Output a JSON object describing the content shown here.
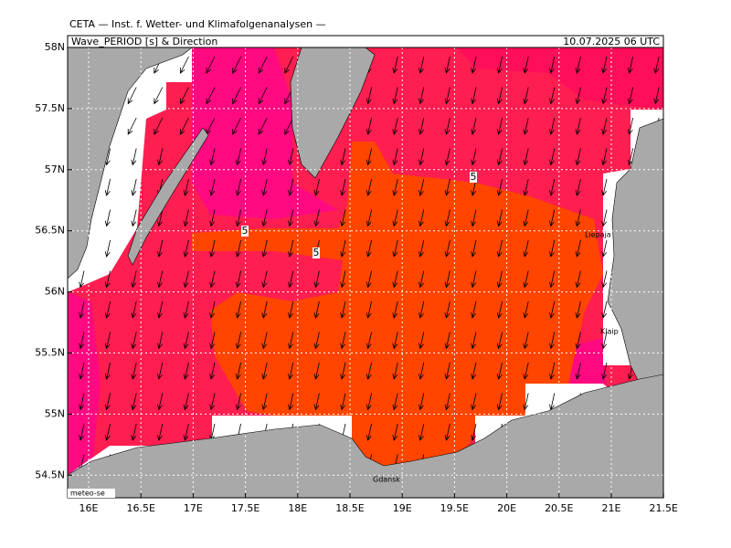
{
  "header": {
    "title": "CETA — Inst. f. Wetter- und Klimafolgenanalysen —",
    "parameter": "Wave_PERIOD [s] & Direction",
    "datetime": "10.07.2025 06 UTC"
  },
  "map": {
    "lon_labels": [
      "16E",
      "16.5E",
      "17E",
      "17.5E",
      "18E",
      "18.5E",
      "19E",
      "19.5E",
      "20E",
      "20.5E",
      "21E",
      "21.5E"
    ],
    "lat_labels": [
      "58N",
      "57.5N",
      "57N",
      "56.5N",
      "56N",
      "55.5N",
      "55N",
      "54.5N"
    ],
    "contour_labels": [
      "5",
      "5",
      "5"
    ],
    "places": [
      "Liepaja",
      "Klaip",
      "Gdansk"
    ],
    "credit": "meteo-se"
  }
}
